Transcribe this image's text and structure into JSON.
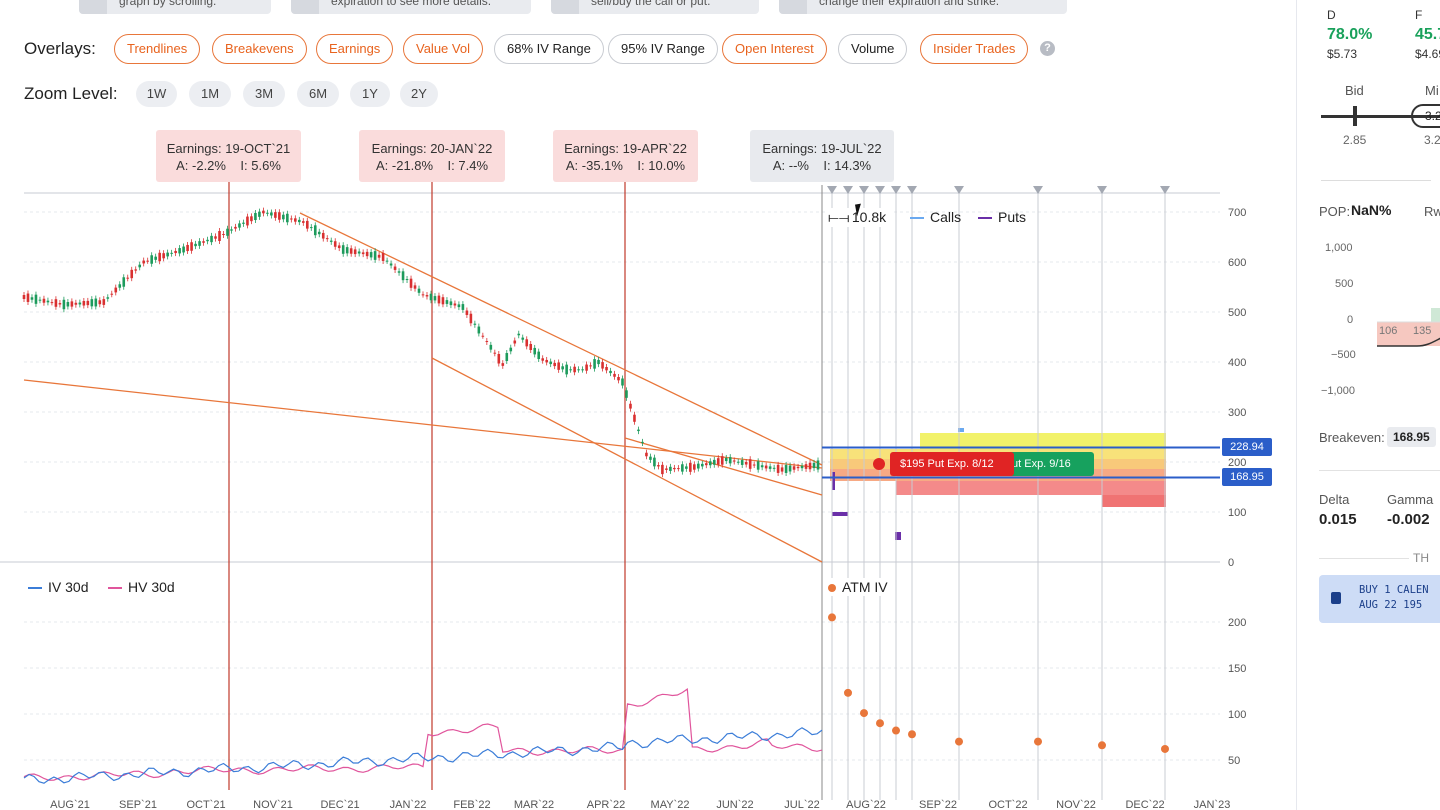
{
  "tips": [
    "graph by scrolling.",
    "expiration to see more details.",
    "sell/buy the call or put.",
    "change their expiration and strike."
  ],
  "overlays": {
    "label": "Overlays:",
    "buttons": [
      "Trendlines",
      "Breakevens",
      "Earnings",
      "Value Vol",
      "68% IV Range",
      "95% IV Range",
      "Open Interest",
      "Volume",
      "Insider Trades"
    ],
    "help": "?"
  },
  "zoom": {
    "label": "Zoom Level:",
    "buttons": [
      "1W",
      "1M",
      "3M",
      "6M",
      "1Y",
      "2Y"
    ]
  },
  "earnings": [
    {
      "title": "Earnings: 19-OCT`21",
      "detail": "A: -2.2%    I: 5.6%"
    },
    {
      "title": "Earnings: 20-JAN`22",
      "detail": "A: -21.8%    I: 7.4%"
    },
    {
      "title": "Earnings: 19-APR`22",
      "detail": "A: -35.1%    I: 10.0%"
    },
    {
      "title": "Earnings: 19-JUL`22",
      "detail": "A: --%    I: 14.3%"
    }
  ],
  "oi_legend": {
    "value": "10.8k",
    "calls": "Calls",
    "puts": "Puts"
  },
  "price_tags": {
    "upper": "228.94",
    "lower": "168.95"
  },
  "trades": {
    "put1": "$195 Put Exp. 8/12",
    "put2": "ut Exp. 9/16"
  },
  "iv_legend": {
    "iv": "IV 30d",
    "hv": "HV 30d",
    "atm": "ATM IV"
  },
  "colors": {
    "orange": "#e8763a",
    "red": "#c0392b",
    "blue": "#2b5ec9",
    "green": "#19a15b",
    "iv_line": "#3b7dd8",
    "hv_line": "#e0559c",
    "puts": "#6a2fa8"
  },
  "chart_data": {
    "type": "line",
    "title": "",
    "price_axis": {
      "ticks": [
        "700",
        "600",
        "500",
        "400",
        "300",
        "200",
        "100",
        "0"
      ],
      "ylim": [
        0,
        700
      ]
    },
    "iv_axis": {
      "ticks": [
        "200",
        "150",
        "100",
        "50"
      ]
    },
    "x_ticks": [
      "AUG`21",
      "SEP`21",
      "OCT`21",
      "NOV`21",
      "DEC`21",
      "JAN`22",
      "FEB`22",
      "MAR`22",
      "APR`22",
      "MAY`22",
      "JUN`22",
      "JUL`22",
      "AUG`22",
      "SEP`22",
      "OCT`22",
      "NOV`22",
      "DEC`22",
      "JAN`23"
    ],
    "price_series": {
      "name": "",
      "x": [
        0,
        5,
        10,
        15,
        20,
        25,
        30,
        35,
        40,
        45,
        50,
        55,
        60,
        62,
        65,
        68,
        70,
        72,
        75,
        78,
        80,
        84,
        88,
        93,
        95,
        100
      ],
      "values": [
        530,
        515,
        520,
        600,
        625,
        655,
        700,
        680,
        625,
        610,
        535,
        510,
        395,
        455,
        405,
        385,
        385,
        400,
        360,
        215,
        185,
        190,
        205,
        190,
        185,
        195
      ]
    },
    "atm_iv": {
      "name": "ATM IV",
      "x": [
        0,
        1,
        2,
        3,
        4,
        5,
        8,
        13,
        17,
        21
      ],
      "values": [
        205,
        123,
        101,
        90,
        82,
        78,
        70,
        70,
        66,
        62
      ]
    }
  },
  "right_panel": {
    "col_d": "D",
    "col_f": "F",
    "d_pct": "78.0%",
    "f_pct": "45.7",
    "d_price": "$5.73",
    "f_price": "$4.69",
    "bid_label": "Bid",
    "mid_label": "Mi",
    "bid_val": "2.85",
    "mid_val": "3.2",
    "mid_input": "3.2",
    "pop_label": "POP:",
    "pop_val": "NaN%",
    "rw_label": "Rw",
    "pl_ticks": [
      "1,000",
      "500",
      "0",
      "−500",
      "−1,000"
    ],
    "pl_x": [
      "106",
      "135"
    ],
    "breakeven_label": "Breakeven:",
    "breakeven_val": "168.95",
    "delta_label": "Delta",
    "delta_val": "0.015",
    "gamma_label": "Gamma",
    "gamma_val": "-0.002",
    "th_label": "TH",
    "order_line1": "BUY 1 CALEN",
    "order_line2": "AUG 22 195 "
  }
}
